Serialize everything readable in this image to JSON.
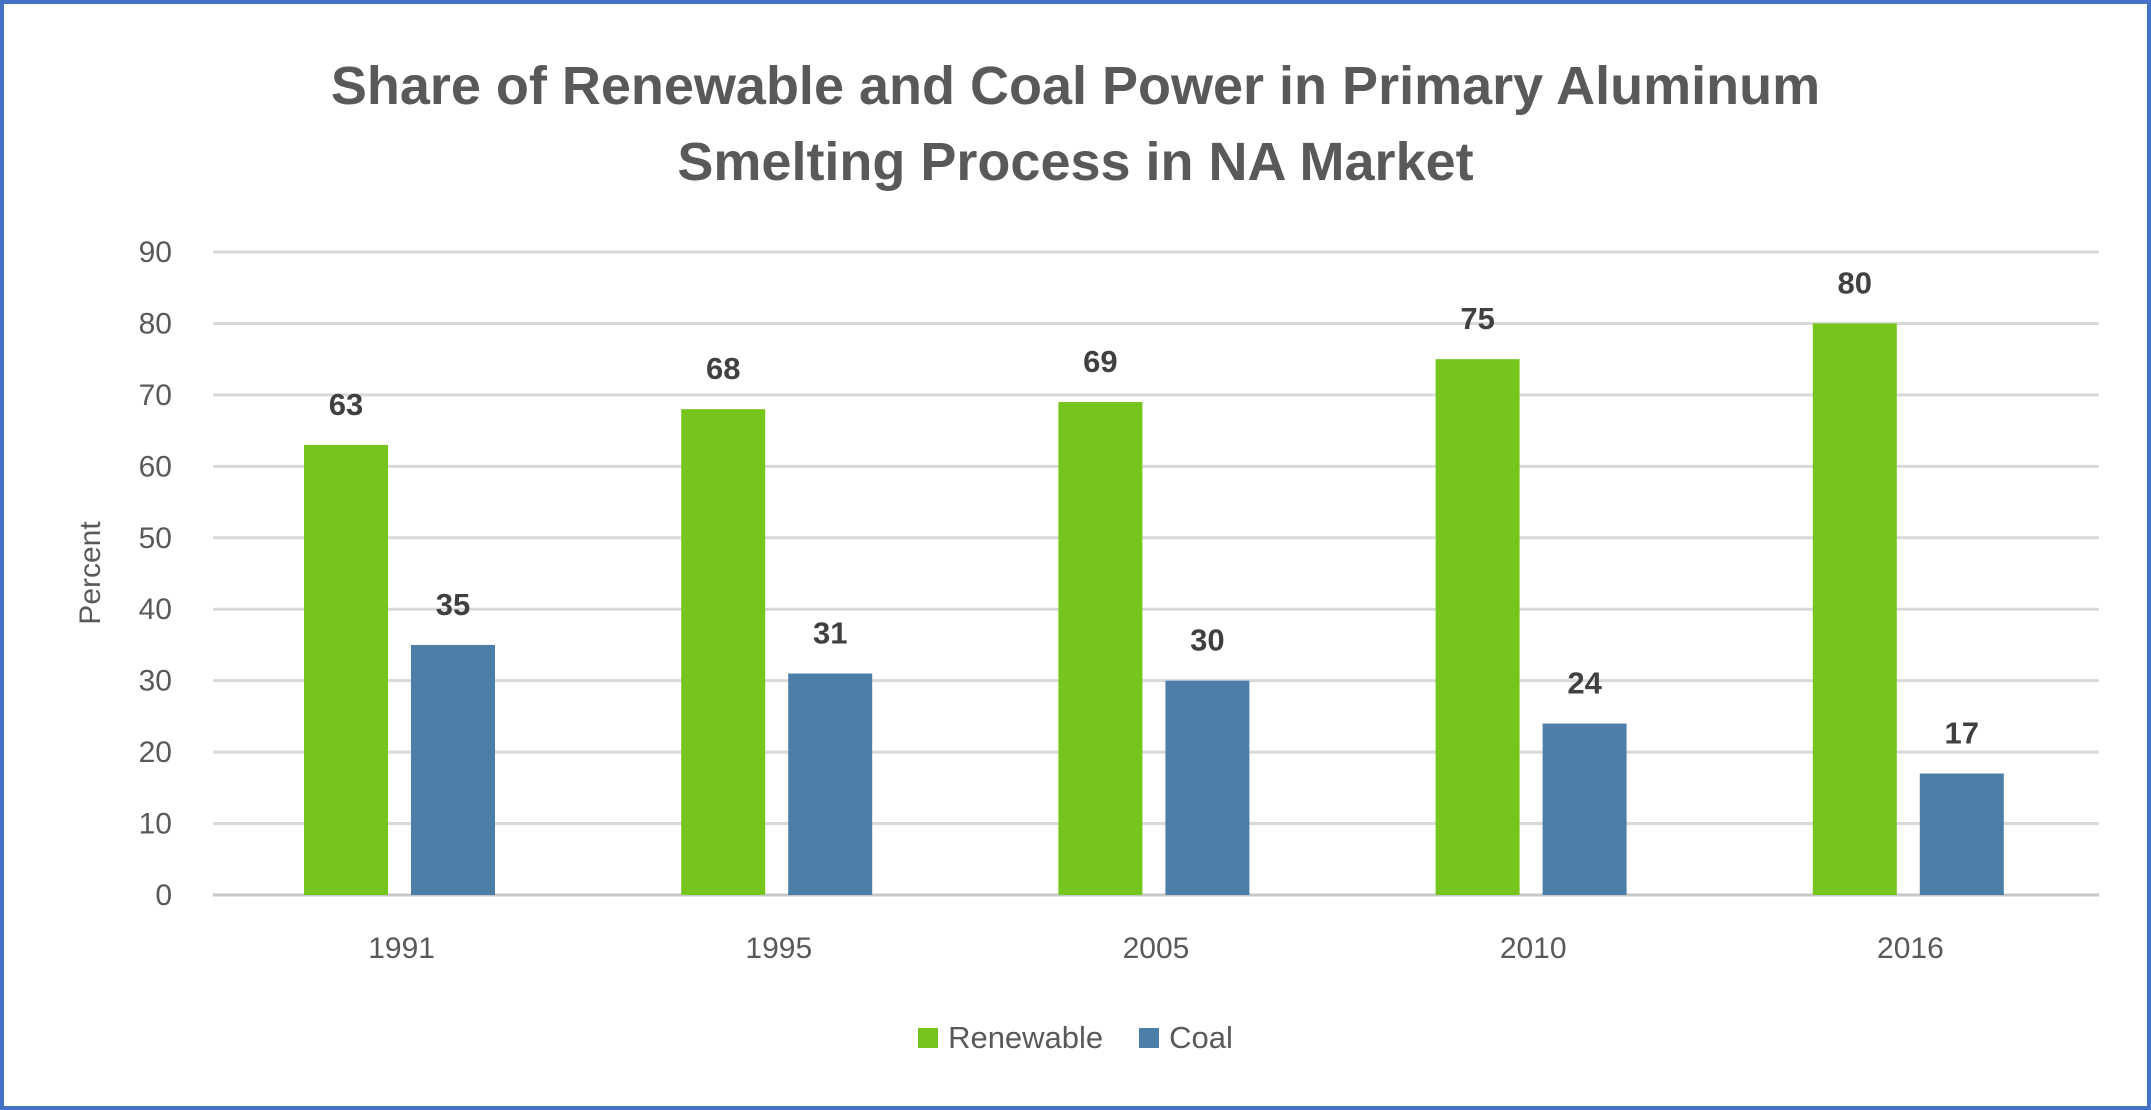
{
  "chart_data": {
    "type": "bar",
    "title_lines": [
      "Share of Renewable and Coal Power in Primary Aluminum",
      "Smelting Process in NA Market"
    ],
    "xlabel": "",
    "ylabel": "Percent",
    "categories": [
      "1991",
      "1995",
      "2005",
      "2010",
      "2016"
    ],
    "series": [
      {
        "name": "Renewable",
        "values": [
          63,
          68,
          69,
          75,
          80
        ],
        "color": "#76C51C"
      },
      {
        "name": "Coal",
        "values": [
          35,
          31,
          30,
          24,
          17
        ],
        "color": "#4D7EA8"
      }
    ],
    "ylim": [
      0,
      90
    ],
    "yticks": [
      0,
      10,
      20,
      30,
      40,
      50,
      60,
      70,
      80,
      90
    ],
    "grid": true,
    "data_labels": true,
    "legend_position": "bottom",
    "border_color": "#4472C4"
  }
}
